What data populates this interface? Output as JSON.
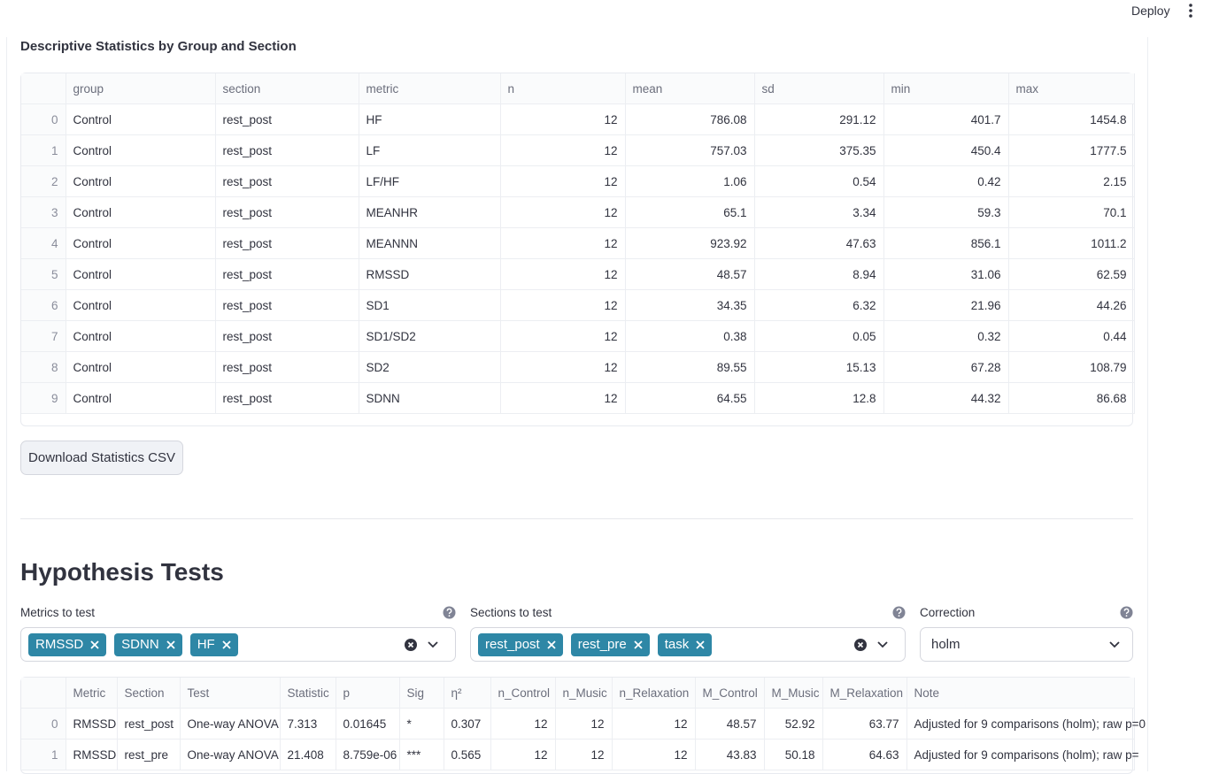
{
  "header": {
    "deploy": "Deploy"
  },
  "descriptive": {
    "title": "Descriptive Statistics by Group and Section",
    "columns": [
      "group",
      "section",
      "metric",
      "n",
      "mean",
      "sd",
      "min",
      "max"
    ],
    "rows": [
      [
        0,
        "Control",
        "rest_post",
        "HF",
        12,
        786.08,
        291.12,
        401.7,
        1454.8
      ],
      [
        1,
        "Control",
        "rest_post",
        "LF",
        12,
        757.03,
        375.35,
        450.4,
        1777.5
      ],
      [
        2,
        "Control",
        "rest_post",
        "LF/HF",
        12,
        1.06,
        0.54,
        0.42,
        2.15
      ],
      [
        3,
        "Control",
        "rest_post",
        "MEANHR",
        12,
        65.1,
        3.34,
        59.3,
        70.1
      ],
      [
        4,
        "Control",
        "rest_post",
        "MEANNN",
        12,
        923.92,
        47.63,
        856.1,
        1011.2
      ],
      [
        5,
        "Control",
        "rest_post",
        "RMSSD",
        12,
        48.57,
        8.94,
        31.06,
        62.59
      ],
      [
        6,
        "Control",
        "rest_post",
        "SD1",
        12,
        34.35,
        6.32,
        21.96,
        44.26
      ],
      [
        7,
        "Control",
        "rest_post",
        "SD1/SD2",
        12,
        0.38,
        0.05,
        0.32,
        0.44
      ],
      [
        8,
        "Control",
        "rest_post",
        "SD2",
        12,
        89.55,
        15.13,
        67.28,
        108.79
      ],
      [
        9,
        "Control",
        "rest_post",
        "SDNN",
        12,
        64.55,
        12.8,
        44.32,
        86.68
      ]
    ]
  },
  "download_button": "Download Statistics CSV",
  "hypothesis": {
    "title": "Hypothesis Tests",
    "metrics": {
      "label": "Metrics to test",
      "selected": [
        "RMSSD",
        "SDNN",
        "HF"
      ]
    },
    "sections": {
      "label": "Sections to test",
      "selected": [
        "rest_post",
        "rest_pre",
        "task"
      ]
    },
    "correction": {
      "label": "Correction",
      "value": "holm"
    },
    "results": {
      "columns": [
        "Metric",
        "Section",
        "Test",
        "Statistic",
        "p",
        "Sig",
        "η²",
        "n_Control",
        "n_Music",
        "n_Relaxation",
        "M_Control",
        "M_Music",
        "M_Relaxation",
        "Note"
      ],
      "rows": [
        [
          0,
          "RMSSD",
          "rest_post",
          "One-way ANOVA",
          "7.313",
          "0.01645",
          "*",
          "0.307",
          12,
          12,
          12,
          48.57,
          52.92,
          63.77,
          "Adjusted for 9 comparisons (holm); raw p=0"
        ],
        [
          1,
          "RMSSD",
          "rest_pre",
          "One-way ANOVA",
          "21.408",
          "8.759e-06",
          "***",
          "0.565",
          12,
          12,
          12,
          43.83,
          50.18,
          64.63,
          "Adjusted for 9 comparisons (holm); raw p="
        ]
      ]
    }
  }
}
